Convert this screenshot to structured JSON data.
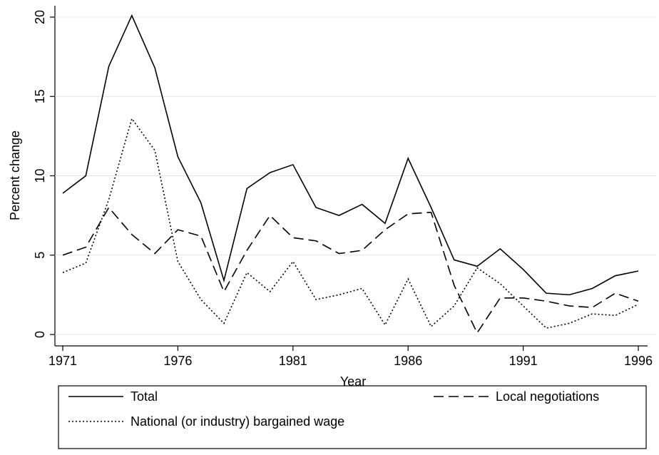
{
  "chart_data": {
    "type": "line",
    "x": [
      1971,
      1972,
      1973,
      1974,
      1975,
      1976,
      1977,
      1978,
      1979,
      1980,
      1981,
      1982,
      1983,
      1984,
      1985,
      1986,
      1987,
      1988,
      1989,
      1990,
      1991,
      1992,
      1993,
      1994,
      1995,
      1996
    ],
    "series": [
      {
        "name": "Total",
        "color": "#000000",
        "style": "solid",
        "values": [
          8.9,
          10.0,
          16.9,
          20.1,
          16.8,
          11.2,
          8.3,
          3.4,
          9.2,
          10.2,
          10.7,
          8.0,
          7.5,
          8.2,
          7.0,
          11.1,
          8.0,
          4.7,
          4.3,
          5.4,
          4.1,
          2.6,
          2.5,
          2.9,
          3.7,
          4.0
        ]
      },
      {
        "name": "Local negotiations",
        "color": "#000000",
        "style": "dashed",
        "values": [
          5.0,
          5.5,
          8.0,
          6.3,
          5.1,
          6.6,
          6.2,
          2.7,
          5.3,
          7.5,
          6.1,
          5.9,
          5.1,
          5.3,
          6.6,
          7.6,
          7.7,
          3.1,
          0.1,
          2.3,
          2.3,
          2.1,
          1.8,
          1.7,
          2.6,
          2.1
        ]
      },
      {
        "name": "National (or industry) bargained wage",
        "color": "#000000",
        "style": "dotted",
        "values": [
          3.9,
          4.5,
          8.5,
          13.6,
          11.6,
          4.6,
          2.2,
          0.7,
          3.9,
          2.7,
          4.6,
          2.2,
          2.5,
          2.9,
          0.6,
          3.5,
          0.5,
          1.8,
          4.2,
          3.2,
          1.8,
          0.4,
          0.7,
          1.3,
          1.2,
          1.9
        ]
      }
    ],
    "x_label": "Year",
    "y_label": "Percent change",
    "xlim": [
      1971,
      1996
    ],
    "xticks": [
      1971,
      1976,
      1981,
      1986,
      1991,
      1996
    ],
    "ylim": [
      0,
      20
    ],
    "yticks": [
      0,
      5,
      10,
      15,
      20
    ],
    "grid": true,
    "legend": "bottom"
  }
}
